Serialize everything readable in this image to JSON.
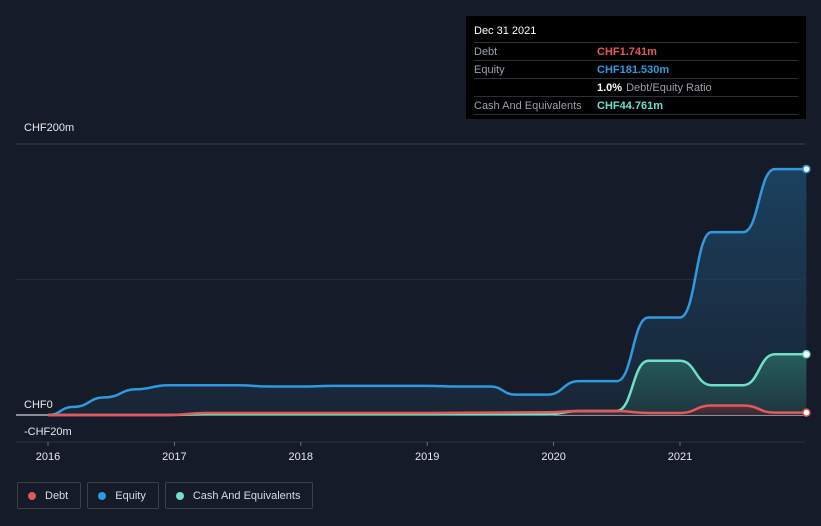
{
  "tooltip": {
    "date": "Dec 31 2021",
    "rows": [
      {
        "label": "Debt",
        "value": "CHF1.741m"
      },
      {
        "label": "Equity",
        "value": "CHF181.530m"
      },
      {
        "label": "",
        "ratio_value": "1.0%",
        "ratio_label": "Debt/Equity Ratio"
      },
      {
        "label": "Cash And Equivalents",
        "value": "CHF44.761m"
      }
    ]
  },
  "legend": [
    {
      "label": "Debt",
      "color": "#e35858"
    },
    {
      "label": "Equity",
      "color": "#2f9ae0"
    },
    {
      "label": "Cash And Equivalents",
      "color": "#6fe0c8"
    }
  ],
  "chart_data": {
    "type": "area",
    "title": "",
    "xlabel": "",
    "ylabel": "",
    "y_tick_labels": [
      "CHF200m",
      "CHF0",
      "-CHF20m"
    ],
    "y_ticks": [
      200,
      0,
      -20
    ],
    "ylim": [
      -20,
      200
    ],
    "x_tick_labels": [
      "2016",
      "2017",
      "2018",
      "2019",
      "2020",
      "2021"
    ],
    "x_ticks": [
      2016,
      2017,
      2018,
      2019,
      2020,
      2021
    ],
    "xlim": [
      2015.73,
      2022.0
    ],
    "grid": true,
    "legend_position": "bottom-left",
    "series": [
      {
        "name": "Equity",
        "color": "#2f9ae0",
        "points": [
          [
            2016.0,
            0
          ],
          [
            2016.2,
            6
          ],
          [
            2016.45,
            13
          ],
          [
            2016.7,
            19
          ],
          [
            2016.95,
            22
          ],
          [
            2017.25,
            22
          ],
          [
            2017.5,
            22
          ],
          [
            2017.75,
            21
          ],
          [
            2018.0,
            21
          ],
          [
            2018.25,
            21.5
          ],
          [
            2018.5,
            21.5
          ],
          [
            2018.75,
            21.5
          ],
          [
            2019.0,
            21.5
          ],
          [
            2019.25,
            21
          ],
          [
            2019.5,
            21
          ],
          [
            2019.7,
            15
          ],
          [
            2019.95,
            15
          ],
          [
            2020.2,
            25
          ],
          [
            2020.5,
            25
          ],
          [
            2020.75,
            72
          ],
          [
            2021.0,
            72
          ],
          [
            2021.25,
            135
          ],
          [
            2021.5,
            135
          ],
          [
            2021.75,
            181.5
          ],
          [
            2022.0,
            181.5
          ]
        ]
      },
      {
        "name": "Cash And Equivalents",
        "color": "#6fe0c8",
        "points": [
          [
            2016.0,
            0
          ],
          [
            2016.95,
            0
          ],
          [
            2017.25,
            0.5
          ],
          [
            2018.0,
            0.5
          ],
          [
            2019.0,
            0.5
          ],
          [
            2019.95,
            0.5
          ],
          [
            2020.2,
            3
          ],
          [
            2020.5,
            3
          ],
          [
            2020.75,
            40
          ],
          [
            2021.0,
            40
          ],
          [
            2021.25,
            22
          ],
          [
            2021.5,
            22
          ],
          [
            2021.75,
            44.8
          ],
          [
            2022.0,
            44.8
          ]
        ]
      },
      {
        "name": "Debt",
        "color": "#e35858",
        "points": [
          [
            2016.0,
            0
          ],
          [
            2016.95,
            0
          ],
          [
            2017.25,
            1.5
          ],
          [
            2018.0,
            1.5
          ],
          [
            2019.0,
            1.5
          ],
          [
            2019.95,
            2
          ],
          [
            2020.2,
            3
          ],
          [
            2020.5,
            3
          ],
          [
            2020.75,
            1.5
          ],
          [
            2021.0,
            1.5
          ],
          [
            2021.25,
            7
          ],
          [
            2021.5,
            7
          ],
          [
            2021.75,
            1.741
          ],
          [
            2022.0,
            1.741
          ]
        ]
      }
    ]
  }
}
